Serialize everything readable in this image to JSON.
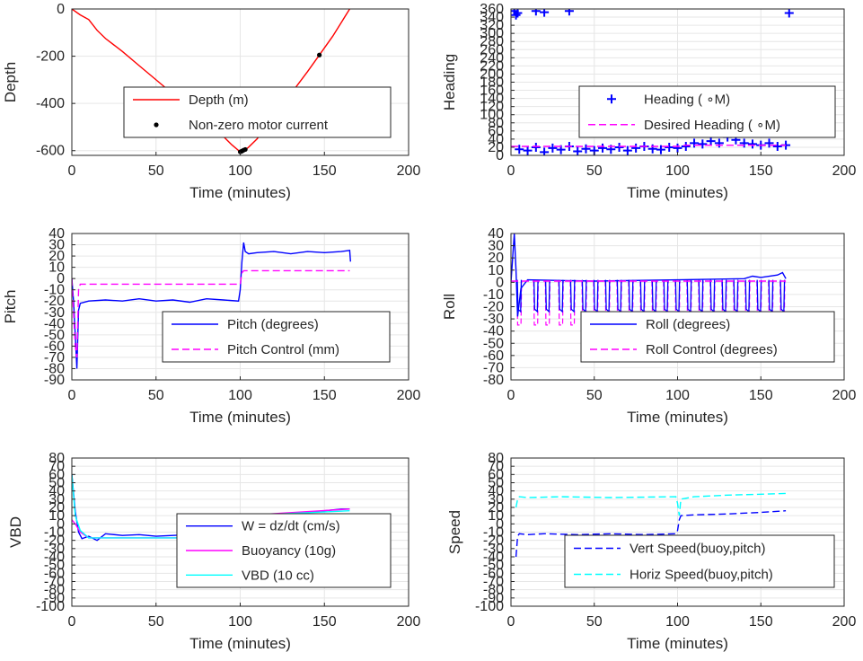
{
  "chart_data": [
    {
      "id": "depth",
      "type": "line",
      "xlabel": "Time (minutes)",
      "ylabel": "Depth",
      "xlim": [
        0,
        200
      ],
      "ylim": [
        -620,
        0
      ],
      "xticks": [
        0,
        50,
        100,
        150,
        200
      ],
      "yticks": [
        0,
        -200,
        -400,
        -600
      ],
      "grid": true,
      "legend": "center",
      "series": [
        {
          "name": "Depth (m)",
          "style": "line",
          "color": "#ff0000",
          "x": [
            0,
            5,
            10,
            15,
            20,
            30,
            40,
            50,
            60,
            70,
            80,
            90,
            95,
            100,
            102,
            105,
            110,
            120,
            130,
            140,
            147,
            155,
            165
          ],
          "y": [
            0,
            -25,
            -45,
            -90,
            -125,
            -180,
            -240,
            -300,
            -360,
            -420,
            -480,
            -540,
            -575,
            -605,
            -602,
            -585,
            -550,
            -455,
            -360,
            -265,
            -195,
            -115,
            0
          ]
        },
        {
          "name": "Non-zero motor current",
          "style": "markers",
          "color": "#000000",
          "x": [
            100,
            101,
            102,
            103,
            130,
            147
          ],
          "y": [
            -605,
            -602,
            -598,
            -595,
            -360,
            -195
          ]
        }
      ]
    },
    {
      "id": "heading",
      "type": "scatter",
      "xlabel": "Time (minutes)",
      "ylabel": "Heading",
      "xlim": [
        0,
        200
      ],
      "ylim": [
        0,
        360
      ],
      "xticks": [
        0,
        50,
        100,
        150,
        200
      ],
      "yticks": [
        0,
        20,
        40,
        60,
        80,
        100,
        120,
        140,
        160,
        180,
        200,
        220,
        240,
        260,
        280,
        300,
        320,
        340,
        360
      ],
      "grid": true,
      "legend": "center-right",
      "series": [
        {
          "name": "Heading ( ∘M)",
          "style": "plus",
          "color": "#0000ff",
          "x": [
            2,
            3,
            4,
            15,
            20,
            35,
            167,
            5,
            10,
            15,
            20,
            25,
            30,
            35,
            40,
            45,
            50,
            55,
            60,
            65,
            70,
            75,
            80,
            85,
            90,
            95,
            100,
            105,
            110,
            115,
            120,
            125,
            130,
            135,
            140,
            145,
            150,
            155,
            160,
            165
          ],
          "y": [
            355,
            345,
            350,
            355,
            352,
            355,
            350,
            15,
            12,
            20,
            8,
            18,
            14,
            22,
            10,
            16,
            12,
            18,
            15,
            20,
            12,
            18,
            22,
            16,
            14,
            20,
            18,
            22,
            30,
            28,
            35,
            30,
            45,
            38,
            30,
            28,
            25,
            30,
            22,
            25
          ]
        },
        {
          "name": "Desired Heading ( ∘M)",
          "style": "dashed",
          "color": "#ff00ff",
          "x": [
            0,
            100,
            105,
            165
          ],
          "y": [
            22,
            22,
            25,
            25
          ]
        }
      ]
    },
    {
      "id": "pitch",
      "type": "line",
      "xlabel": "Time (minutes)",
      "ylabel": "Pitch",
      "xlim": [
        0,
        200
      ],
      "ylim": [
        -90,
        40
      ],
      "xticks": [
        0,
        50,
        100,
        150,
        200
      ],
      "yticks": [
        40,
        30,
        20,
        10,
        0,
        -10,
        -20,
        -30,
        -40,
        -50,
        -60,
        -70,
        -80,
        -90
      ],
      "grid": true,
      "legend": "lower-right",
      "series": [
        {
          "name": "Pitch (degrees)",
          "style": "line",
          "color": "#0000ff",
          "x": [
            0,
            1,
            2,
            3,
            4,
            5,
            10,
            20,
            30,
            40,
            50,
            60,
            70,
            80,
            90,
            99,
            100,
            101,
            102,
            103,
            105,
            110,
            120,
            130,
            140,
            150,
            160,
            165,
            165.5
          ],
          "y": [
            0,
            -20,
            -50,
            -80,
            -28,
            -22,
            -20,
            -19,
            -20,
            -18,
            -20,
            -19,
            -21,
            -18,
            -19,
            -20,
            -10,
            15,
            32,
            24,
            22,
            23,
            24,
            22,
            24,
            23,
            24,
            25,
            15
          ]
        },
        {
          "name": "Pitch Control (mm)",
          "style": "dashed",
          "color": "#ff00ff",
          "x": [
            0,
            1,
            2,
            3,
            4,
            5,
            100,
            101,
            102,
            165
          ],
          "y": [
            0,
            -30,
            -60,
            -70,
            -10,
            -5,
            -5,
            5,
            7,
            7
          ]
        }
      ]
    },
    {
      "id": "roll",
      "type": "line",
      "xlabel": "Time (minutes)",
      "ylabel": "Roll",
      "xlim": [
        0,
        200
      ],
      "ylim": [
        -80,
        40
      ],
      "xticks": [
        0,
        50,
        100,
        150,
        200
      ],
      "yticks": [
        40,
        30,
        20,
        10,
        0,
        -10,
        -20,
        -30,
        -40,
        -50,
        -60,
        -70,
        -80
      ],
      "grid": true,
      "legend": "lower-right",
      "spikes": [
        5,
        15,
        22,
        30,
        37,
        44,
        51,
        58,
        65,
        72,
        79,
        86,
        93,
        100,
        107,
        114,
        121,
        128,
        135,
        142,
        149,
        156,
        163
      ],
      "series": [
        {
          "name": "Roll (degrees)",
          "style": "line",
          "color": "#0000ff",
          "x": [
            0,
            2,
            3,
            4,
            6,
            10,
            50,
            100,
            140,
            145,
            150,
            160,
            163,
            165
          ],
          "y": [
            0,
            40,
            10,
            -28,
            -5,
            2,
            1,
            2,
            3,
            5,
            4,
            6,
            8,
            3
          ]
        },
        {
          "name": "Roll Control (degrees)",
          "style": "dashed",
          "color": "#ff00ff",
          "x": [
            0,
            165
          ],
          "y": [
            1,
            1
          ]
        }
      ]
    },
    {
      "id": "vbd",
      "type": "line",
      "xlabel": "Time (minutes)",
      "ylabel": "VBD",
      "xlim": [
        0,
        200
      ],
      "ylim": [
        -100,
        80
      ],
      "xticks": [
        0,
        50,
        100,
        150,
        200
      ],
      "yticks": [
        80,
        70,
        60,
        50,
        40,
        30,
        20,
        10,
        0,
        -10,
        -20,
        -30,
        -40,
        -50,
        -60,
        -70,
        -80,
        -90,
        -100
      ],
      "grid": true,
      "legend": "center-right",
      "series": [
        {
          "name": "W = dz/dt (cm/s)",
          "style": "line",
          "color": "#0000ff",
          "x": [
            0,
            2,
            4,
            6,
            10,
            15,
            20,
            30,
            40,
            50,
            60,
            70,
            80,
            90,
            100,
            102,
            105,
            110,
            120,
            130,
            140,
            150,
            160,
            165
          ],
          "y": [
            60,
            15,
            -10,
            -18,
            -15,
            -20,
            -12,
            -14,
            -13,
            -15,
            -14,
            -13,
            -15,
            -14,
            -14,
            5,
            10,
            10,
            11,
            12,
            14,
            16,
            18,
            18
          ]
        },
        {
          "name": "Buoyancy (10g)",
          "style": "line",
          "color": "#ff00ff",
          "x": [
            0,
            2,
            5,
            10,
            100,
            101,
            165
          ],
          "y": [
            5,
            0,
            -10,
            -17,
            -17,
            10,
            18
          ]
        },
        {
          "name": "VBD (10 cc)",
          "style": "line",
          "color": "#00ffff",
          "x": [
            0,
            2,
            5,
            10,
            100,
            101,
            165
          ],
          "y": [
            60,
            10,
            -8,
            -17,
            -17,
            10,
            16
          ]
        }
      ]
    },
    {
      "id": "speed",
      "type": "line",
      "xlabel": "Time (minutes)",
      "ylabel": "Speed",
      "xlim": [
        0,
        200
      ],
      "ylim": [
        -100,
        80
      ],
      "xticks": [
        0,
        50,
        100,
        150,
        200
      ],
      "yticks": [
        80,
        70,
        60,
        50,
        40,
        30,
        20,
        10,
        0,
        -10,
        -20,
        -30,
        -40,
        -50,
        -60,
        -70,
        -80,
        -90,
        -100
      ],
      "grid": true,
      "legend": "center-right",
      "series": [
        {
          "name": "Vert Speed(buoy,pitch)",
          "style": "dashed",
          "color": "#0000ff",
          "x": [
            3,
            4,
            5,
            10,
            20,
            40,
            60,
            80,
            99,
            100,
            101,
            102,
            110,
            130,
            150,
            165
          ],
          "y": [
            -40,
            -15,
            -12,
            -13,
            -12,
            -13,
            -12,
            -13,
            -12,
            -8,
            5,
            10,
            11,
            12,
            14,
            16
          ]
        },
        {
          "name": "Horiz Speed(buoy,pitch)",
          "style": "dashed",
          "color": "#00ffff",
          "x": [
            3,
            4,
            5,
            10,
            30,
            60,
            99,
            100,
            101,
            102,
            110,
            130,
            150,
            165
          ],
          "y": [
            20,
            30,
            33,
            32,
            33,
            32,
            33,
            25,
            10,
            30,
            33,
            35,
            36,
            37
          ]
        }
      ]
    }
  ]
}
